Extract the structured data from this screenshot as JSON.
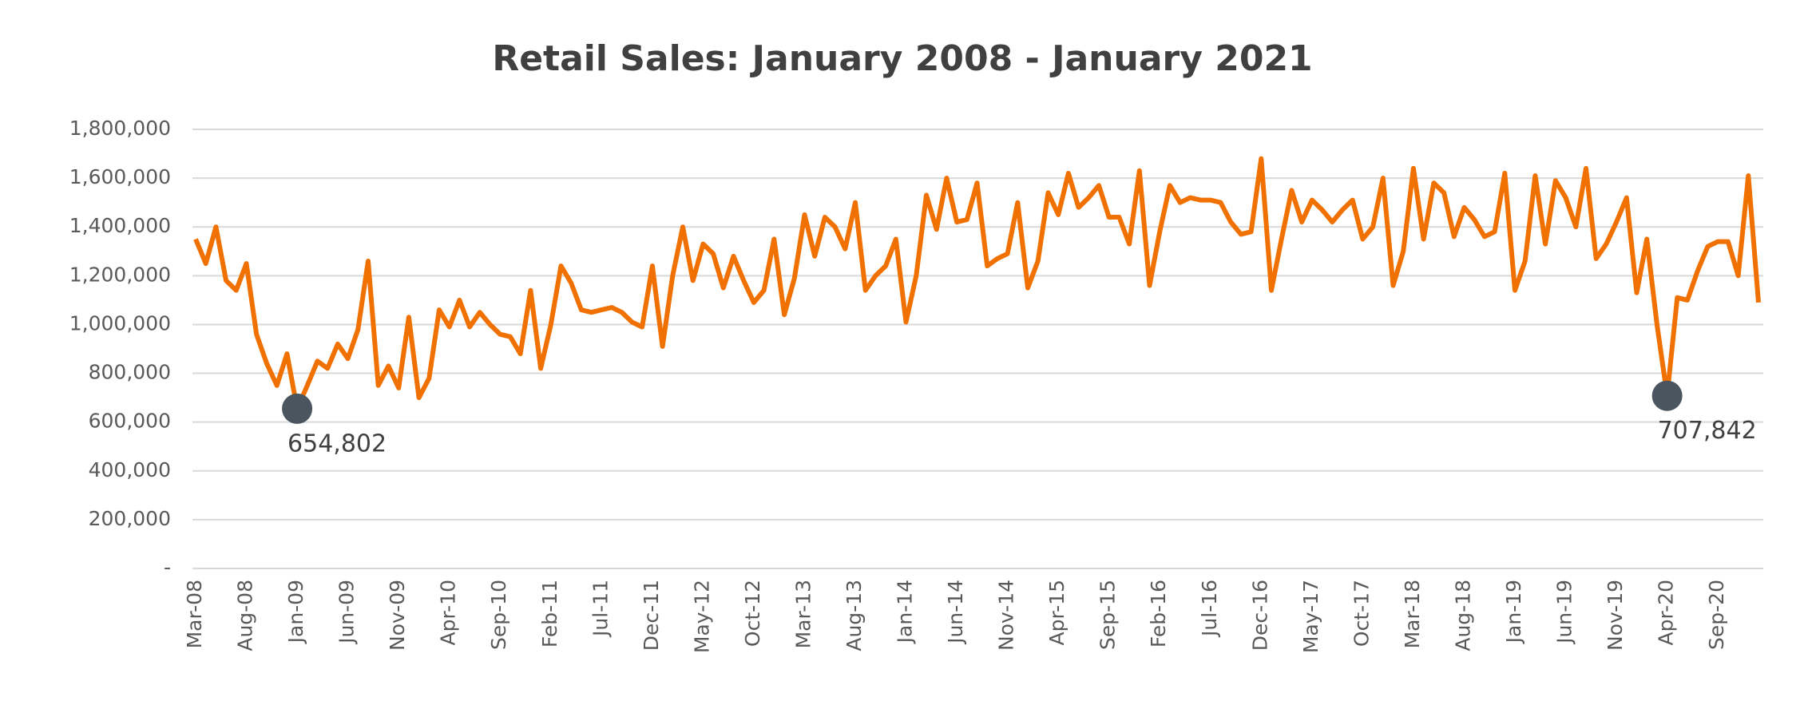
{
  "chart_data": {
    "type": "line",
    "title": "Retail Sales: January 2008 - January 2021",
    "categories": [
      "Mar-08",
      null,
      null,
      null,
      null,
      "Aug-08",
      null,
      null,
      null,
      null,
      "Jan-09",
      null,
      null,
      null,
      null,
      "Jun-09",
      null,
      null,
      null,
      null,
      "Nov-09",
      null,
      null,
      null,
      null,
      "Apr-10",
      null,
      null,
      null,
      null,
      "Sep-10",
      null,
      null,
      null,
      null,
      "Feb-11",
      null,
      null,
      null,
      null,
      "Jul-11",
      null,
      null,
      null,
      null,
      "Dec-11",
      null,
      null,
      null,
      null,
      "May-12",
      null,
      null,
      null,
      null,
      "Oct-12",
      null,
      null,
      null,
      null,
      "Mar-13",
      null,
      null,
      null,
      null,
      "Aug-13",
      null,
      null,
      null,
      null,
      "Jan-14",
      null,
      null,
      null,
      null,
      "Jun-14",
      null,
      null,
      null,
      null,
      "Nov-14",
      null,
      null,
      null,
      null,
      "Apr-15",
      null,
      null,
      null,
      null,
      "Sep-15",
      null,
      null,
      null,
      null,
      "Feb-16",
      null,
      null,
      null,
      null,
      "Jul-16",
      null,
      null,
      null,
      null,
      "Dec-16",
      null,
      null,
      null,
      null,
      "May-17",
      null,
      null,
      null,
      null,
      "Oct-17",
      null,
      null,
      null,
      null,
      "Mar-18",
      null,
      null,
      null,
      null,
      "Aug-18",
      null,
      null,
      null,
      null,
      "Jan-19",
      null,
      null,
      null,
      null,
      "Jun-19",
      null,
      null,
      null,
      null,
      "Nov-19",
      null,
      null,
      null,
      null,
      "Apr-20",
      null,
      null,
      null,
      null,
      "Sep-20",
      null,
      null,
      null,
      null
    ],
    "series": [
      {
        "color": "#f07000",
        "values": [
          1350000,
          1250000,
          1400000,
          1180000,
          1140000,
          1250000,
          960000,
          840000,
          750000,
          880000,
          654802,
          750000,
          850000,
          820000,
          920000,
          860000,
          980000,
          1260000,
          750000,
          830000,
          740000,
          1030000,
          700000,
          780000,
          1060000,
          990000,
          1100000,
          990000,
          1050000,
          1000000,
          960000,
          950000,
          880000,
          1140000,
          820000,
          1000000,
          1240000,
          1170000,
          1060000,
          1050000,
          1060000,
          1070000,
          1050000,
          1010000,
          990000,
          1240000,
          910000,
          1200000,
          1400000,
          1180000,
          1330000,
          1290000,
          1150000,
          1280000,
          1180000,
          1090000,
          1140000,
          1350000,
          1040000,
          1190000,
          1450000,
          1280000,
          1440000,
          1400000,
          1310000,
          1500000,
          1140000,
          1200000,
          1240000,
          1350000,
          1010000,
          1200000,
          1530000,
          1390000,
          1600000,
          1420000,
          1430000,
          1580000,
          1240000,
          1270000,
          1290000,
          1500000,
          1150000,
          1260000,
          1540000,
          1450000,
          1620000,
          1480000,
          1520000,
          1570000,
          1440000,
          1440000,
          1330000,
          1630000,
          1160000,
          1380000,
          1570000,
          1500000,
          1520000,
          1510000,
          1510000,
          1500000,
          1420000,
          1370000,
          1380000,
          1680000,
          1140000,
          1350000,
          1550000,
          1420000,
          1510000,
          1470000,
          1420000,
          1470000,
          1510000,
          1350000,
          1400000,
          1600000,
          1160000,
          1300000,
          1640000,
          1350000,
          1580000,
          1540000,
          1360000,
          1480000,
          1430000,
          1360000,
          1380000,
          1620000,
          1140000,
          1260000,
          1610000,
          1330000,
          1590000,
          1520000,
          1400000,
          1640000,
          1270000,
          1330000,
          1420000,
          1520000,
          1130000,
          1350000,
          1000000,
          707842,
          1110000,
          1100000,
          1220000,
          1320000,
          1340000,
          1340000,
          1200000,
          1610000,
          1090000
        ]
      }
    ],
    "value_labels": [
      null,
      null,
      null,
      null,
      null,
      null,
      null,
      null,
      null,
      null,
      "654,802",
      null,
      null,
      null,
      null,
      null,
      null,
      null,
      null,
      null,
      null,
      null,
      null,
      null,
      null,
      null,
      null,
      null,
      null,
      null,
      null,
      null,
      null,
      null,
      null,
      null,
      null,
      null,
      null,
      null,
      null,
      null,
      null,
      null,
      null,
      null,
      null,
      null,
      null,
      null,
      null,
      null,
      null,
      null,
      null,
      null,
      null,
      null,
      null,
      null,
      null,
      null,
      null,
      null,
      null,
      null,
      null,
      null,
      null,
      null,
      null,
      null,
      null,
      null,
      null,
      null,
      null,
      null,
      null,
      null,
      null,
      null,
      null,
      null,
      null,
      null,
      null,
      null,
      null,
      null,
      null,
      null,
      null,
      null,
      null,
      null,
      null,
      null,
      null,
      null,
      null,
      null,
      null,
      null,
      null,
      null,
      null,
      null,
      null,
      null,
      null,
      null,
      null,
      null,
      null,
      null,
      null,
      null,
      null,
      null,
      null,
      null,
      null,
      null,
      null,
      null,
      null,
      null,
      null,
      null,
      null,
      null,
      null,
      null,
      null,
      null,
      null,
      null,
      null,
      null,
      null,
      null,
      null,
      null,
      null,
      "707,842",
      null,
      null,
      null,
      null,
      null,
      null,
      null,
      null,
      null
    ],
    "marker_color": "#4a5560",
    "ylim": [
      0,
      1800000
    ],
    "yticks": [
      {
        "value": 0,
        "label": "-"
      },
      {
        "value": 200000,
        "label": "200,000"
      },
      {
        "value": 400000,
        "label": "400,000"
      },
      {
        "value": 600000,
        "label": "600,000"
      },
      {
        "value": 800000,
        "label": "800,000"
      },
      {
        "value": 1000000,
        "label": "1,000,000"
      },
      {
        "value": 1200000,
        "label": "1,200,000"
      },
      {
        "value": 1400000,
        "label": "1,400,000"
      },
      {
        "value": 1600000,
        "label": "1,600,000"
      },
      {
        "value": 1800000,
        "label": "1,800,000"
      }
    ],
    "grid": true
  }
}
